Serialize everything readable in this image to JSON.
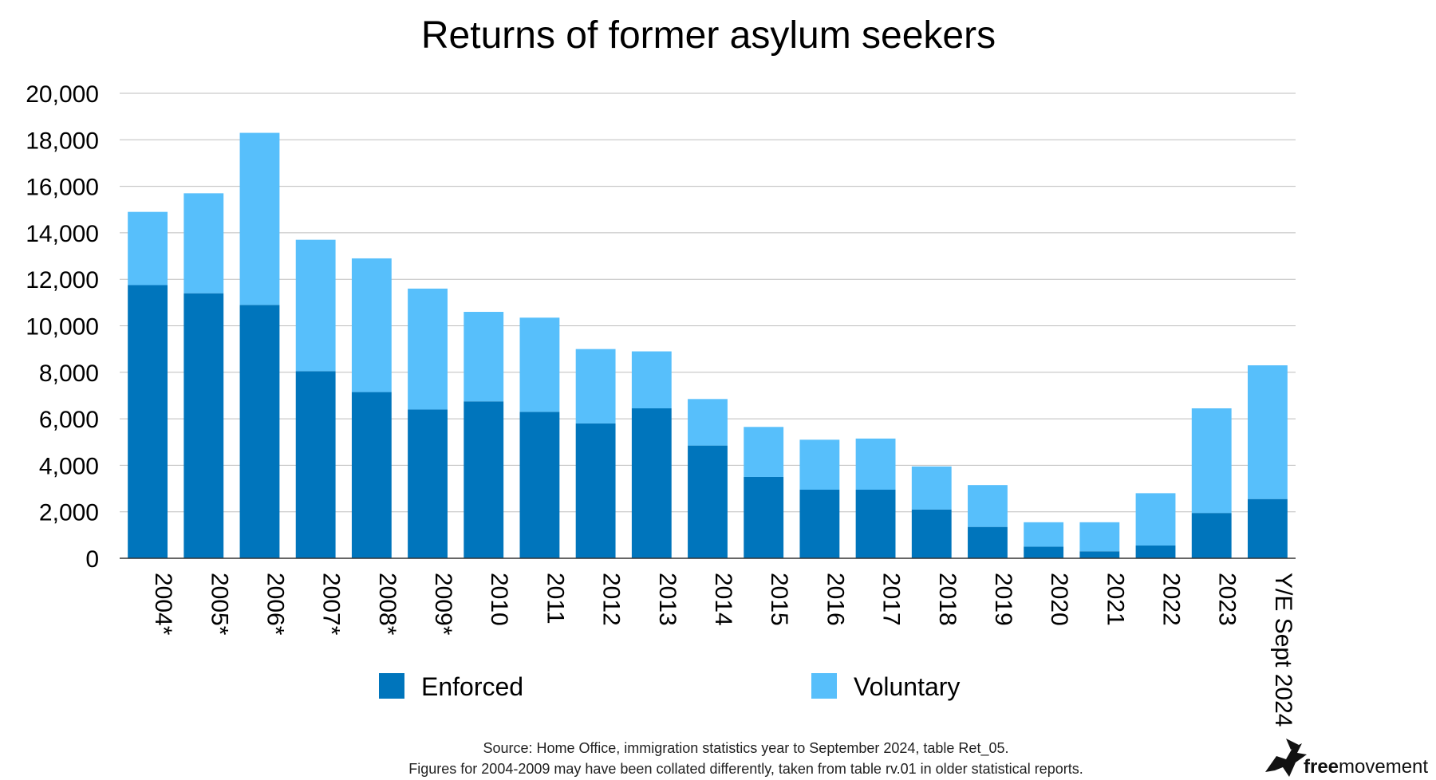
{
  "chart_data": {
    "type": "bar",
    "stacked": true,
    "title": "Returns of former asylum seekers",
    "categories": [
      "2004*",
      "2005*",
      "2006*",
      "2007*",
      "2008*",
      "2009*",
      "2010",
      "2011",
      "2012",
      "2013",
      "2014",
      "2015",
      "2016",
      "2017",
      "2018",
      "2019",
      "2020",
      "2021",
      "2022",
      "2023",
      "Y/E Sept 2024"
    ],
    "series": [
      {
        "name": "Enforced",
        "color": "#0075BC",
        "values": [
          11750,
          11400,
          10900,
          8050,
          7150,
          6400,
          6750,
          6300,
          5800,
          6450,
          4850,
          3500,
          2950,
          2950,
          2100,
          1350,
          500,
          300,
          550,
          1950,
          2550
        ]
      },
      {
        "name": "Voluntary",
        "color": "#57BFFB",
        "values": [
          3150,
          4300,
          7400,
          5650,
          5750,
          5200,
          3850,
          4050,
          3200,
          2450,
          2000,
          2150,
          2150,
          2200,
          1850,
          1800,
          1050,
          1250,
          2250,
          4500,
          5750
        ]
      }
    ],
    "ylim": [
      0,
      20000
    ],
    "yticks": [
      "0",
      "2,000",
      "4,000",
      "6,000",
      "8,000",
      "10,000",
      "12,000",
      "14,000",
      "16,000",
      "18,000",
      "20,000"
    ],
    "grid": true,
    "legend_position": "bottom"
  },
  "source_line_1": "Source: Home Office, immigration statistics year to September 2024, table Ret_05.",
  "source_line_2": "Figures for 2004-2009 may have been collated differently, taken from table rv.01 in older statistical reports.",
  "brand": {
    "bold": "free",
    "regular": "movement",
    "icon": "bird-logo-icon"
  }
}
